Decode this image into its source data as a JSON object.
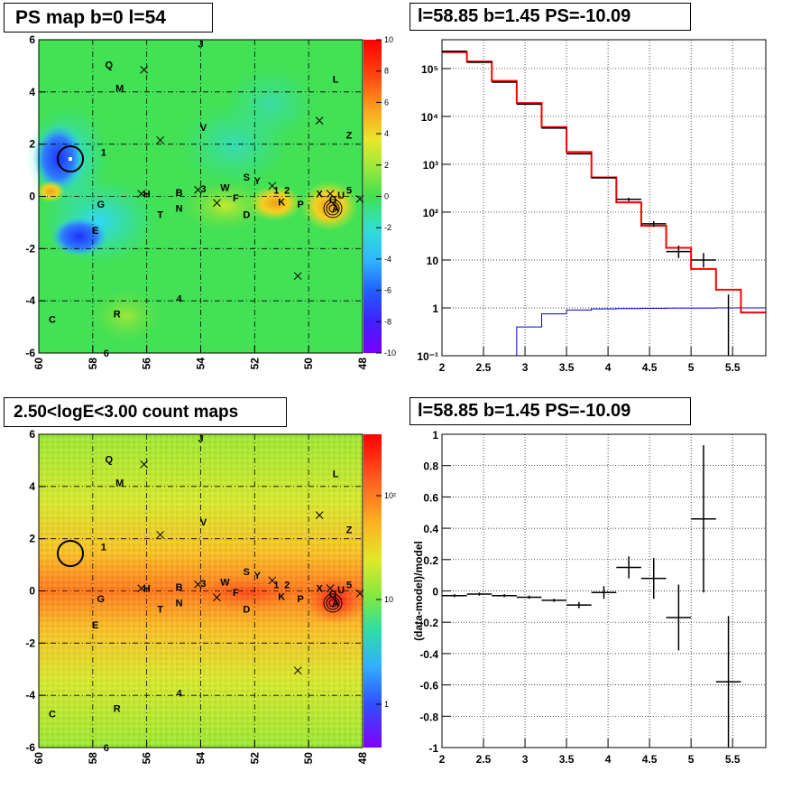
{
  "titles": {
    "tl": "PS map b=0 l=54",
    "tr": "l=58.85 b=1.45 PS=-10.09",
    "bl": "2.50<logE<3.00 count maps",
    "br": "l=58.85 b=1.45 PS=-10.09"
  },
  "sources": [
    {
      "n": "J",
      "l": 54.0,
      "b": 5.85
    },
    {
      "n": "Q",
      "l": 57.4,
      "b": 5.05
    },
    {
      "n": "M",
      "l": 57.0,
      "b": 4.15
    },
    {
      "n": "L",
      "l": 49.0,
      "b": 4.5
    },
    {
      "n": "V",
      "l": 53.9,
      "b": 2.65
    },
    {
      "n": "Z",
      "l": 48.5,
      "b": 2.35
    },
    {
      "n": "1",
      "l": 57.6,
      "b": 1.7
    },
    {
      "n": "H",
      "l": 56.0,
      "b": 0.1
    },
    {
      "n": "G",
      "l": 57.7,
      "b": -0.3
    },
    {
      "n": "B",
      "l": 54.8,
      "b": 0.15
    },
    {
      "n": "3",
      "l": 53.9,
      "b": 0.3
    },
    {
      "n": "W",
      "l": 53.1,
      "b": 0.35
    },
    {
      "n": "F",
      "l": 52.7,
      "b": -0.05
    },
    {
      "n": "N",
      "l": 54.8,
      "b": -0.45
    },
    {
      "n": "T",
      "l": 55.5,
      "b": -0.7
    },
    {
      "n": "D",
      "l": 52.3,
      "b": -0.7
    },
    {
      "n": "S",
      "l": 52.3,
      "b": 0.75
    },
    {
      "n": "Y",
      "l": 51.9,
      "b": 0.6
    },
    {
      "n": "1",
      "l": 51.2,
      "b": 0.25
    },
    {
      "n": "2",
      "l": 50.8,
      "b": 0.25
    },
    {
      "n": "K",
      "l": 51.0,
      "b": -0.2
    },
    {
      "n": "P",
      "l": 50.3,
      "b": -0.3
    },
    {
      "n": "X",
      "l": 49.6,
      "b": 0.1
    },
    {
      "n": "Q",
      "l": 49.1,
      "b": -0.1
    },
    {
      "n": "U",
      "l": 48.8,
      "b": 0.05
    },
    {
      "n": "5",
      "l": 48.5,
      "b": 0.25
    },
    {
      "n": "A",
      "l": 49.0,
      "b": -0.45
    },
    {
      "n": "E",
      "l": 57.9,
      "b": -1.3
    },
    {
      "n": "4",
      "l": 54.8,
      "b": -3.9
    },
    {
      "n": "C",
      "l": 59.5,
      "b": -4.7
    },
    {
      "n": "R",
      "l": 57.1,
      "b": -4.5
    },
    {
      "n": "6",
      "l": 57.5,
      "b": -6.0
    }
  ],
  "crosses": [
    {
      "l": 56.1,
      "b": 4.85
    },
    {
      "l": 55.5,
      "b": 2.15
    },
    {
      "l": 49.6,
      "b": 2.9
    },
    {
      "l": 56.2,
      "b": 0.1
    },
    {
      "l": 54.1,
      "b": 0.25
    },
    {
      "l": 53.4,
      "b": -0.25
    },
    {
      "l": 51.35,
      "b": 0.4
    },
    {
      "l": 49.2,
      "b": 0.1
    },
    {
      "l": 48.1,
      "b": -0.1
    },
    {
      "l": 50.4,
      "b": -3.05
    }
  ],
  "map_ticks": {
    "x": [
      "60",
      "58",
      "56",
      "54",
      "52",
      "50",
      "48"
    ],
    "y": [
      "6",
      "4",
      "2",
      "0",
      "-2",
      "-4",
      "-6"
    ]
  },
  "colorbar_top": {
    "labels": [
      "10",
      "8",
      "6",
      "4",
      "2",
      "0",
      "-2",
      "-4",
      "-6",
      "-8",
      "-10"
    ]
  },
  "colorbar_bottom": {
    "labels": [
      "10²",
      "10",
      "1"
    ]
  },
  "chart_data": [
    {
      "type": "line",
      "title": "l=58.85 b=1.45 PS=-10.09",
      "xlabel": "",
      "ylabel": "",
      "log_y": true,
      "xlim": [
        2.0,
        5.9
      ],
      "ylim": [
        0.1,
        400000
      ],
      "x_ticks": [
        "2",
        "2.5",
        "3",
        "3.5",
        "4",
        "4.5",
        "5",
        "5.5"
      ],
      "y_ticks": [
        "10⁻¹",
        "1",
        "10",
        "10²",
        "10³",
        "10⁴",
        "10⁵"
      ],
      "series": [
        {
          "style": "red-steps",
          "edges": [
            2.0,
            2.3,
            2.6,
            2.9,
            3.2,
            3.5,
            3.8,
            4.1,
            4.4,
            4.7,
            5.0,
            5.3,
            5.6,
            5.9
          ],
          "values": [
            220000,
            140000,
            55000,
            19000,
            6000,
            1800,
            530,
            160,
            52,
            18,
            6.5,
            2.4,
            0.8
          ]
        },
        {
          "style": "blue-steps",
          "edges": [
            2.0,
            2.3,
            2.6,
            2.9,
            3.2,
            3.5,
            3.8,
            4.1,
            4.4,
            4.7,
            5.0,
            5.3,
            5.6,
            5.9
          ],
          "values": [
            0,
            0,
            0.1,
            0.4,
            0.75,
            0.9,
            0.95,
            0.97,
            0.98,
            0.99,
            0.99,
            1.0,
            1.0
          ]
        },
        {
          "style": "data",
          "points": [
            {
              "x": 2.15,
              "y": 230000,
              "xe": 0.15,
              "ylo": 0,
              "yhi": 0
            },
            {
              "x": 2.45,
              "y": 135000,
              "xe": 0.15,
              "ylo": 0,
              "yhi": 0
            },
            {
              "x": 2.75,
              "y": 52000,
              "xe": 0.15,
              "ylo": 0,
              "yhi": 0
            },
            {
              "x": 3.05,
              "y": 18000,
              "xe": 0.15,
              "ylo": 0,
              "yhi": 0
            },
            {
              "x": 3.35,
              "y": 5700,
              "xe": 0.15,
              "ylo": 0,
              "yhi": 0
            },
            {
              "x": 3.65,
              "y": 1650,
              "xe": 0.15,
              "ylo": 0,
              "yhi": 0
            },
            {
              "x": 3.95,
              "y": 520,
              "xe": 0.15,
              "ylo": 0,
              "yhi": 0
            },
            {
              "x": 4.25,
              "y": 185,
              "xe": 0.15,
              "ylo": 15,
              "yhi": 15
            },
            {
              "x": 4.55,
              "y": 57,
              "xe": 0.15,
              "ylo": 8,
              "yhi": 8
            },
            {
              "x": 4.85,
              "y": 15,
              "xe": 0.15,
              "ylo": 4,
              "yhi": 5
            },
            {
              "x": 5.15,
              "y": 10,
              "xe": 0.15,
              "ylo": 3,
              "yhi": 4
            },
            {
              "x": 5.45,
              "y": 0.9,
              "xe": 0.0,
              "ylo": 0.85,
              "yhi": 1.0
            }
          ]
        }
      ]
    },
    {
      "type": "scatter",
      "title": "l=58.85 b=1.45 PS=-10.09",
      "xlabel": "",
      "ylabel": "(data-model)/model",
      "xlim": [
        2.0,
        5.9
      ],
      "ylim": [
        -1.0,
        1.0
      ],
      "x_ticks": [
        "2",
        "2.5",
        "3",
        "3.5",
        "4",
        "4.5",
        "5",
        "5.5"
      ],
      "y_ticks": [
        "1",
        "0.8",
        "0.6",
        "0.4",
        "0.2",
        "0",
        "-0.2",
        "-0.4",
        "-0.6",
        "-0.8",
        "-1"
      ],
      "points": [
        {
          "x": 2.15,
          "y": -0.03,
          "xe": 0.15,
          "ye": 0.01
        },
        {
          "x": 2.45,
          "y": -0.02,
          "xe": 0.15,
          "ye": 0.01
        },
        {
          "x": 2.75,
          "y": -0.03,
          "xe": 0.15,
          "ye": 0.01
        },
        {
          "x": 3.05,
          "y": -0.04,
          "xe": 0.15,
          "ye": 0.01
        },
        {
          "x": 3.35,
          "y": -0.06,
          "xe": 0.15,
          "ye": 0.01
        },
        {
          "x": 3.65,
          "y": -0.09,
          "xe": 0.15,
          "ye": 0.02
        },
        {
          "x": 3.95,
          "y": -0.01,
          "xe": 0.15,
          "ye": 0.04
        },
        {
          "x": 4.25,
          "y": 0.15,
          "xe": 0.15,
          "ye": 0.07
        },
        {
          "x": 4.55,
          "y": 0.08,
          "xe": 0.15,
          "ye": 0.13
        },
        {
          "x": 4.85,
          "y": -0.17,
          "xe": 0.15,
          "ye": 0.21
        },
        {
          "x": 5.15,
          "y": 0.46,
          "xe": 0.15,
          "ye": 0.47
        },
        {
          "x": 5.45,
          "y": -0.58,
          "xe": 0.15,
          "ye": 0.42
        }
      ]
    }
  ]
}
